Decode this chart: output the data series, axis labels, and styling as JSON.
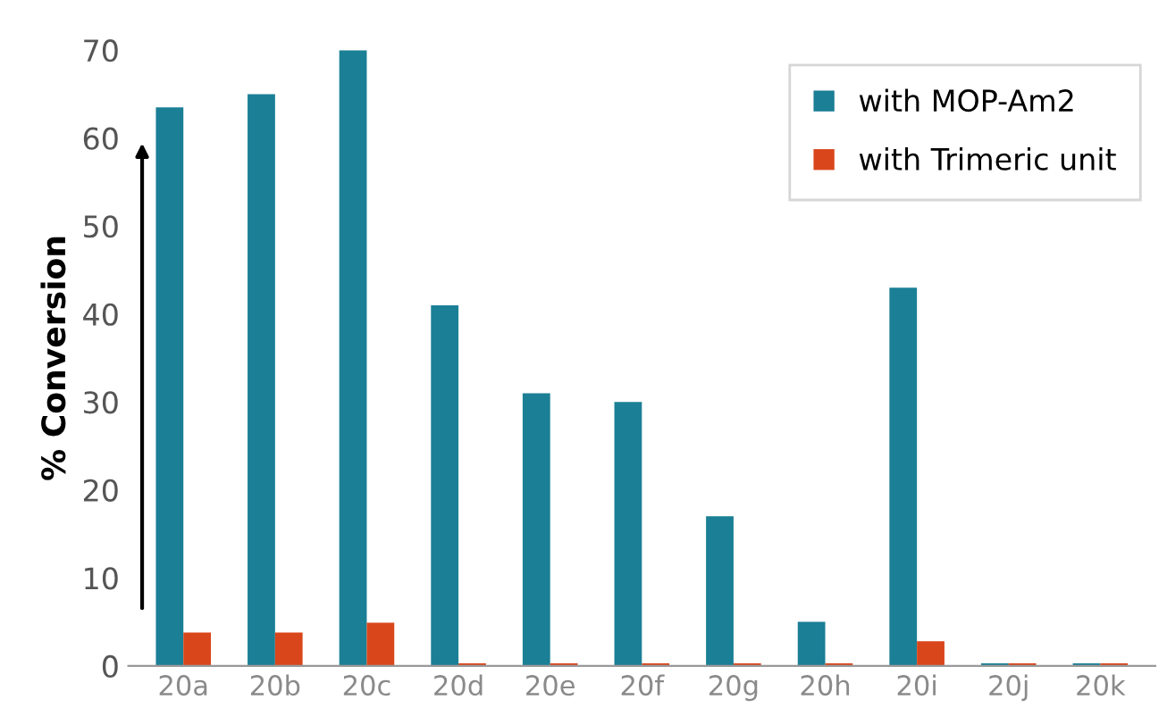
{
  "chart_data": {
    "type": "bar",
    "ylabel": "% Conversion",
    "categories": [
      "20a",
      "20b",
      "20c",
      "20d",
      "20e",
      "20f",
      "20g",
      "20h",
      "20i",
      "20j",
      "20k"
    ],
    "series": [
      {
        "name": "with MOP-Am2",
        "color": "#1b7f95",
        "values": [
          63.5,
          65,
          70,
          41,
          31,
          30,
          17,
          5,
          43,
          0.3,
          0.3
        ]
      },
      {
        "name": "with Trimeric unit",
        "color": "#d9461b",
        "values": [
          3.8,
          3.8,
          4.9,
          0.3,
          0.3,
          0.3,
          0.3,
          0.3,
          2.8,
          0.3,
          0.3
        ]
      }
    ],
    "ylim": [
      0,
      70
    ],
    "yticks": [
      0,
      10,
      20,
      30,
      40,
      50,
      60,
      70
    ],
    "grid": false,
    "legend": "top right"
  }
}
